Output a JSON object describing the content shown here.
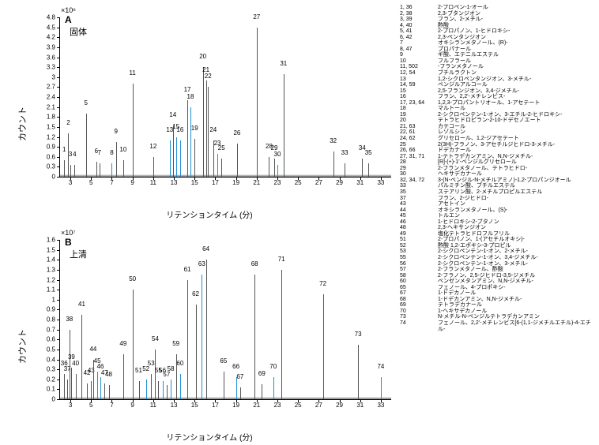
{
  "global": {
    "x_axis_label": "リテンションタイム (分)",
    "y_axis_label": "カウント",
    "axis_fontsize": 10,
    "tick_fontsize": 8,
    "peak_color": "#555555",
    "peak_highlight_color": "#1e90d4",
    "label_color": "#000000",
    "background_color": "#ffffff"
  },
  "panelA": {
    "letter": "A",
    "tag": "固体",
    "y_scale_label": "×10⁶",
    "xlim": [
      2,
      34
    ],
    "ylim": [
      0,
      4.8
    ],
    "xticks": [
      3,
      5,
      7,
      9,
      11,
      13,
      15,
      17,
      19,
      21,
      23,
      25,
      27,
      29,
      31,
      33
    ],
    "yticks": [
      0,
      0.3,
      0.6,
      0.9,
      1.2,
      1.5,
      1.8,
      2.1,
      2.4,
      2.7,
      3.0,
      3.3,
      3.6,
      3.9,
      4.2,
      4.5,
      4.8
    ],
    "peaks": [
      {
        "id": "1",
        "rt": 2.4,
        "h": 0.5
      },
      {
        "id": "2",
        "rt": 2.8,
        "h": 1.3
      },
      {
        "id": "3",
        "rt": 3.0,
        "h": 0.35
      },
      {
        "id": "4",
        "rt": 3.4,
        "h": 0.35
      },
      {
        "id": "5",
        "rt": 4.5,
        "h": 1.9
      },
      {
        "id": "6",
        "rt": 5.5,
        "h": 0.45
      },
      {
        "id": "7",
        "rt": 5.8,
        "h": 0.4
      },
      {
        "id": "8",
        "rt": 7.0,
        "h": 0.4,
        "mark": true
      },
      {
        "id": "9",
        "rt": 7.4,
        "h": 1.05
      },
      {
        "id": "10",
        "rt": 8.1,
        "h": 0.5
      },
      {
        "id": "11",
        "rt": 9.0,
        "h": 2.8
      },
      {
        "id": "12",
        "rt": 11.0,
        "h": 0.6
      },
      {
        "id": "13",
        "rt": 12.6,
        "h": 1.1,
        "mark": true
      },
      {
        "id": "14",
        "rt": 12.9,
        "h": 1.55
      },
      {
        "id": "15",
        "rt": 13.2,
        "h": 1.2,
        "mark": true
      },
      {
        "id": "16",
        "rt": 13.6,
        "h": 1.1,
        "mark": true
      },
      {
        "id": "17",
        "rt": 14.3,
        "h": 2.3
      },
      {
        "id": "18",
        "rt": 14.6,
        "h": 2.1,
        "mark": true
      },
      {
        "id": "19",
        "rt": 15.0,
        "h": 1.15
      },
      {
        "id": "20",
        "rt": 15.8,
        "h": 3.3
      },
      {
        "id": "21",
        "rt": 16.1,
        "h": 2.9
      },
      {
        "id": "22",
        "rt": 16.3,
        "h": 2.7
      },
      {
        "id": "23",
        "rt": 17.2,
        "h": 0.7,
        "mark": true
      },
      {
        "id": "24",
        "rt": 16.8,
        "h": 1.1
      },
      {
        "id": "25",
        "rt": 17.6,
        "h": 0.55
      },
      {
        "id": "26",
        "rt": 19.1,
        "h": 1.0
      },
      {
        "id": "27",
        "rt": 21.0,
        "h": 4.5
      },
      {
        "id": "28",
        "rt": 22.2,
        "h": 0.6
      },
      {
        "id": "29",
        "rt": 22.7,
        "h": 0.55
      },
      {
        "id": "30",
        "rt": 23.0,
        "h": 0.35,
        "mark": true
      },
      {
        "id": "31",
        "rt": 23.6,
        "h": 3.1
      },
      {
        "id": "32",
        "rt": 28.4,
        "h": 0.75
      },
      {
        "id": "33",
        "rt": 29.5,
        "h": 0.4
      },
      {
        "id": "34",
        "rt": 31.2,
        "h": 0.55
      },
      {
        "id": "35",
        "rt": 31.8,
        "h": 0.4
      }
    ]
  },
  "panelB": {
    "letter": "B",
    "tag": "上清",
    "y_scale_label": "×10⁷",
    "xlim": [
      2,
      34
    ],
    "ylim": [
      0,
      1.6
    ],
    "xticks": [
      3,
      5,
      7,
      9,
      11,
      13,
      15,
      17,
      19,
      21,
      23,
      25,
      27,
      29,
      31,
      33
    ],
    "yticks": [
      0,
      0.1,
      0.2,
      0.3,
      0.4,
      0.5,
      0.6,
      0.7,
      0.8,
      0.9,
      1.0,
      1.1,
      1.2,
      1.3,
      1.4,
      1.5,
      1.6
    ],
    "peaks": [
      {
        "id": "36",
        "rt": 2.4,
        "h": 0.25
      },
      {
        "id": "37",
        "rt": 2.7,
        "h": 0.2
      },
      {
        "id": "38",
        "rt": 2.9,
        "h": 0.7
      },
      {
        "id": "39",
        "rt": 3.1,
        "h": 0.32
      },
      {
        "id": "40",
        "rt": 3.5,
        "h": 0.25
      },
      {
        "id": "41",
        "rt": 4.1,
        "h": 0.85
      },
      {
        "id": "42",
        "rt": 4.6,
        "h": 0.16
      },
      {
        "id": "43",
        "rt": 5.0,
        "h": 0.18
      },
      {
        "id": "44",
        "rt": 5.2,
        "h": 0.4
      },
      {
        "id": "45",
        "rt": 5.6,
        "h": 0.28,
        "mark": true
      },
      {
        "id": "46",
        "rt": 5.9,
        "h": 0.22,
        "mark": true
      },
      {
        "id": "47",
        "rt": 6.3,
        "h": 0.16
      },
      {
        "id": "48",
        "rt": 6.7,
        "h": 0.14
      },
      {
        "id": "49",
        "rt": 8.1,
        "h": 0.45
      },
      {
        "id": "50",
        "rt": 9.0,
        "h": 1.1
      },
      {
        "id": "51",
        "rt": 9.6,
        "h": 0.18
      },
      {
        "id": "52",
        "rt": 10.3,
        "h": 0.2,
        "mark": true
      },
      {
        "id": "53",
        "rt": 10.8,
        "h": 0.25
      },
      {
        "id": "54",
        "rt": 11.2,
        "h": 0.5
      },
      {
        "id": "55",
        "rt": 11.5,
        "h": 0.18
      },
      {
        "id": "56",
        "rt": 11.9,
        "h": 0.18,
        "mark": true
      },
      {
        "id": "57",
        "rt": 12.3,
        "h": 0.14
      },
      {
        "id": "58",
        "rt": 12.7,
        "h": 0.2,
        "mark": true
      },
      {
        "id": "59",
        "rt": 13.2,
        "h": 0.45
      },
      {
        "id": "60",
        "rt": 13.6,
        "h": 0.25,
        "mark": true
      },
      {
        "id": "61",
        "rt": 14.3,
        "h": 1.2
      },
      {
        "id": "62",
        "rt": 15.1,
        "h": 0.95
      },
      {
        "id": "63",
        "rt": 15.7,
        "h": 1.25,
        "mark": true
      },
      {
        "id": "64",
        "rt": 16.1,
        "h": 1.4
      },
      {
        "id": "65",
        "rt": 17.8,
        "h": 0.28
      },
      {
        "id": "66",
        "rt": 19.0,
        "h": 0.22,
        "mark": true
      },
      {
        "id": "67",
        "rt": 19.4,
        "h": 0.12
      },
      {
        "id": "68",
        "rt": 20.8,
        "h": 1.25
      },
      {
        "id": "69",
        "rt": 21.5,
        "h": 0.15
      },
      {
        "id": "70",
        "rt": 22.6,
        "h": 0.22,
        "mark": true
      },
      {
        "id": "71",
        "rt": 23.4,
        "h": 1.3
      },
      {
        "id": "72",
        "rt": 27.4,
        "h": 1.05
      },
      {
        "id": "73",
        "rt": 30.8,
        "h": 0.55
      },
      {
        "id": "74",
        "rt": 33.0,
        "h": 0.22,
        "mark": true
      }
    ]
  },
  "legend": [
    {
      "id": "1, 36",
      "name": "2-プロペン-1-オール"
    },
    {
      "id": "2, 38",
      "name": "2,3-ブタンジオン"
    },
    {
      "id": "3, 39",
      "name": "フラン、2-メチル-"
    },
    {
      "id": "4, 40",
      "name": "酢酸"
    },
    {
      "id": "5, 41",
      "name": "2-プロパノン、1-ヒドロキシ-"
    },
    {
      "id": "6, 42",
      "name": "2,3-ペンタンジオン"
    },
    {
      "id": "7",
      "name": "オキシランメタノール、(R)-"
    },
    {
      "id": "8, 47",
      "name": "プロパナール"
    },
    {
      "id": "9",
      "name": "ギ酸、エテニルエステル"
    },
    {
      "id": "10",
      "name": "フルフラール"
    },
    {
      "id": "11, 502",
      "name": "-フランメタノール"
    },
    {
      "id": "12, 54",
      "name": "ブチルラクトン"
    },
    {
      "id": "13",
      "name": "1,2-シクロペンタンジオン、3-メチル-"
    },
    {
      "id": "14, 59",
      "name": "ベンジルアルコール"
    },
    {
      "id": "15",
      "name": "2,5-フランジオン、3,4-ジメチル-"
    },
    {
      "id": "16",
      "name": "フラン、2,2'-メチレンビス-"
    },
    {
      "id": "17, 23, 64",
      "name": "1,2,3-プロパントリオール、1-アセテート"
    },
    {
      "id": "18",
      "name": "マルトール"
    },
    {
      "id": "19",
      "name": "2-シクロペンテン-1-オン、3-エチル-2-ヒドロキシ-"
    },
    {
      "id": "20",
      "name": "テトラヒドロピラン-2-10-ドデセノエート"
    },
    {
      "id": "21, 63",
      "name": "カテコール"
    },
    {
      "id": "22, 61",
      "name": "レゾルシン"
    },
    {
      "id": "24, 62",
      "name": "グリセロール、1,2-ジアセテート"
    },
    {
      "id": "25",
      "name": "2(3H)-フラノン、3-アセチルジヒドロ-3-メチル-"
    },
    {
      "id": "26, 66",
      "name": "ドデカナール"
    },
    {
      "id": "27, 31, 71",
      "name": "1-テトラデカンアミン、N,N-ジメチル-"
    },
    {
      "id": "28",
      "name": "[R]-(+)-1'-ベンジルグリセロール"
    },
    {
      "id": "29",
      "name": "2-フランメタノール、テトラヒドロ-"
    },
    {
      "id": "30",
      "name": "ヘキサデカナール"
    },
    {
      "id": "32, 34, 72",
      "name": "3-(N-ベンジル-N-メチルアミノ)-1,2-プロパンジオール"
    },
    {
      "id": "33",
      "name": "パルミチン酸、ブチルエステル"
    },
    {
      "id": "35",
      "name": "ステアリン酸、2-メチルプロピルエステル"
    },
    {
      "id": "37",
      "name": "フラン、2-ジヒドロ-"
    },
    {
      "id": "43",
      "name": "アセトイン"
    },
    {
      "id": "44",
      "name": "オキシランメタノール、(S)-"
    },
    {
      "id": "45",
      "name": "トルエン"
    },
    {
      "id": "46",
      "name": "1-ヒドロキシ-2-ブタノン"
    },
    {
      "id": "48",
      "name": "2,3-ヘキサンジオン"
    },
    {
      "id": "49",
      "name": "塩化テトラヒドロフルフリル"
    },
    {
      "id": "51",
      "name": "2-プロパノン、1-(アセチルオキシ)-"
    },
    {
      "id": "52",
      "name": "酢酸 1,2-エポキシ-3-プロピル"
    },
    {
      "id": "53",
      "name": "2-シクロペンテン-1-オン、2-メチル-"
    },
    {
      "id": "55",
      "name": "2-シクロペンテン-1-オン、3,4-ジメチル-"
    },
    {
      "id": "56",
      "name": "2-シクロペンテン-1-オン、3-メチル-"
    },
    {
      "id": "57",
      "name": "2-フランメタノール、酢酸"
    },
    {
      "id": "58",
      "name": "2-フラノン、2,5-ジヒドロ-3,5-ジメチル"
    },
    {
      "id": "60",
      "name": "ベンゼンメタンアミン、N,N-ジメチル-"
    },
    {
      "id": "65",
      "name": "フェノール、4-プロポキシ-"
    },
    {
      "id": "67",
      "name": "1-ドデカノール"
    },
    {
      "id": "68",
      "name": "1-ドデカンアミン、N,N-ジメチル-"
    },
    {
      "id": "69",
      "name": "テトラデカナール"
    },
    {
      "id": "70",
      "name": "1-ヘキサデカノール"
    },
    {
      "id": "73",
      "name": "N-メチル-N-ベンジルテトラデカンアミン"
    },
    {
      "id": "74",
      "name": "フェノール、2,2'-メチレンビス[6-(1,1-ジメチルエチル)-4-エチル-"
    }
  ]
}
